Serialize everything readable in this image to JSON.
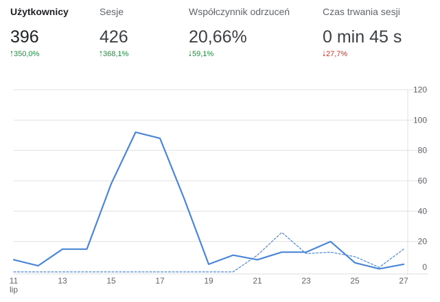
{
  "metrics": [
    {
      "label": "Użytkownicy",
      "value": "396",
      "change": "350,0%",
      "direction": "up",
      "active": true
    },
    {
      "label": "Sesje",
      "value": "426",
      "change": "368,1%",
      "direction": "up",
      "active": false
    },
    {
      "label": "Współczynnik odrzuceń",
      "value": "20,66%",
      "change": "59,1%",
      "direction": "down_good",
      "active": false
    },
    {
      "label": "Czas trwania sesji",
      "value": "0 min 45 s",
      "change": "27,7%",
      "direction": "down_bad",
      "active": false
    }
  ],
  "colors": {
    "accent": "#4a86d8",
    "positive": "#1e8e3e",
    "negative": "#d93025",
    "grid": "#e0e0e0"
  },
  "chart_data": {
    "type": "line",
    "x": [
      11,
      12,
      13,
      14,
      15,
      16,
      17,
      18,
      19,
      20,
      21,
      22,
      23,
      24,
      25,
      26,
      27
    ],
    "x_tick_labels": [
      "11",
      "13",
      "15",
      "17",
      "19",
      "21",
      "23",
      "25",
      "27"
    ],
    "x_sublabel": "lip",
    "y_ticks": [
      0,
      20,
      40,
      60,
      80,
      100,
      120
    ],
    "ylim": [
      0,
      120
    ],
    "grid": true,
    "series": [
      {
        "style": "solid",
        "values": [
          8,
          4,
          15,
          15,
          58,
          92,
          88,
          48,
          5,
          11,
          8,
          13,
          13,
          20,
          6,
          2,
          5
        ]
      },
      {
        "style": "dashed",
        "values": [
          0,
          0,
          0,
          0,
          0,
          0,
          0,
          0,
          0,
          0,
          11,
          26,
          12,
          13,
          10,
          3,
          15
        ]
      }
    ]
  }
}
